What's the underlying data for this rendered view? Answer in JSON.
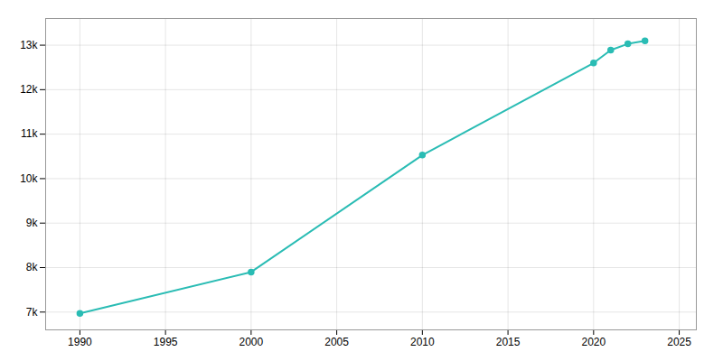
{
  "chart_data": {
    "type": "line",
    "x": [
      1990,
      2000,
      2010,
      2020,
      2021,
      2022,
      2023
    ],
    "values": [
      6971,
      7900,
      10530,
      12600,
      12890,
      13030,
      13100
    ],
    "color": "#2abcb4",
    "marker": "circle",
    "xlim": [
      1988,
      2026
    ],
    "xticks": [
      1990,
      1995,
      2000,
      2005,
      2010,
      2015,
      2020,
      2025
    ],
    "ylim": [
      6600,
      13600
    ],
    "yticks": [
      {
        "value": 7000,
        "label": "7k"
      },
      {
        "value": 8000,
        "label": "8k"
      },
      {
        "value": 9000,
        "label": "9k"
      },
      {
        "value": 10000,
        "label": "10k"
      },
      {
        "value": 11000,
        "label": "11k"
      },
      {
        "value": 12000,
        "label": "12k"
      },
      {
        "value": 13000,
        "label": "13k"
      }
    ],
    "grid": true
  }
}
